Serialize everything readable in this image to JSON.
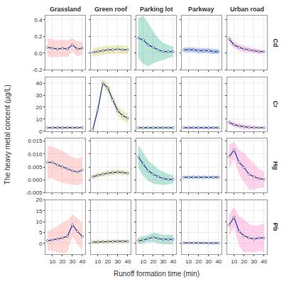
{
  "chart_data": {
    "type": "line",
    "x_label": "Runoff formation time (min)",
    "y_label": "The heavy metal concent (μg/L)",
    "color": "#1133BB",
    "marker": "circle",
    "grid": true,
    "x": [
      5,
      10,
      15,
      20,
      25,
      30,
      35,
      40
    ],
    "xlim": [
      3,
      43
    ],
    "xticks": [
      10,
      20,
      30,
      40
    ],
    "columns": [
      {
        "name": "Grassland",
        "color": "#FF9999"
      },
      {
        "name": "Green roof",
        "color": "#CCCC55"
      },
      {
        "name": "Parking lot",
        "color": "#44BB99"
      },
      {
        "name": "Parkway",
        "color": "#5588EE"
      },
      {
        "name": "Urban road",
        "color": "#FF88CC"
      }
    ],
    "rows": [
      {
        "name": "Cd",
        "ylim": [
          -0.2,
          0.45
        ],
        "yticks": [
          -0.2,
          {
            "value": 0.0,
            "label": "0.0"
          },
          0.2,
          0.4
        ],
        "panels": [
          {
            "values": [
              0.07,
              0.06,
              0.05,
              0.06,
              0.05,
              0.1,
              0.05,
              0.06
            ],
            "upper": [
              0.18,
              0.17,
              0.15,
              0.16,
              0.15,
              0.18,
              0.14,
              0.14
            ],
            "lower": [
              -0.04,
              -0.05,
              -0.05,
              -0.04,
              -0.05,
              0.02,
              -0.04,
              -0.02
            ]
          },
          {
            "values": [
              0.01,
              0.02,
              0.03,
              0.04,
              0.04,
              0.05,
              0.04,
              0.04
            ],
            "upper": [
              0.06,
              0.07,
              0.08,
              0.09,
              0.09,
              0.1,
              0.09,
              0.09
            ],
            "lower": [
              -0.04,
              -0.03,
              -0.02,
              -0.01,
              -0.01,
              0.0,
              -0.01,
              -0.01
            ]
          },
          {
            "values": [
              0.18,
              0.16,
              0.1,
              0.07,
              0.04,
              0.02,
              0.02,
              0.02
            ],
            "upper": [
              0.42,
              0.45,
              0.36,
              0.26,
              0.18,
              0.12,
              0.1,
              0.08
            ],
            "lower": [
              -0.06,
              -0.13,
              -0.16,
              -0.12,
              -0.1,
              -0.08,
              -0.06,
              -0.04
            ]
          },
          {
            "values": [
              0.04,
              0.04,
              0.04,
              0.03,
              0.03,
              0.03,
              0.02,
              0.02
            ],
            "upper": [
              0.07,
              0.07,
              0.07,
              0.06,
              0.06,
              0.06,
              0.05,
              0.05
            ],
            "lower": [
              0.01,
              0.01,
              0.01,
              0.0,
              0.0,
              0.0,
              -0.01,
              -0.01
            ]
          },
          {
            "values": [
              0.17,
              0.1,
              0.07,
              0.05,
              0.04,
              0.03,
              0.02,
              0.02
            ],
            "upper": [
              0.21,
              0.14,
              0.11,
              0.09,
              0.07,
              0.06,
              0.05,
              0.04
            ],
            "lower": [
              0.13,
              0.06,
              0.03,
              0.01,
              0.01,
              0.0,
              -0.01,
              0.0
            ]
          }
        ]
      },
      {
        "name": "Cr",
        "ylim": [
          0,
          45
        ],
        "yticks": [
          0,
          10,
          20,
          30,
          40
        ],
        "panels": [
          {
            "values": [
              3.0,
              3.1,
              3.0,
              3.0,
              3.0,
              3.1,
              3.0,
              3.1
            ],
            "upper": [
              4.0,
              4.0,
              4.0,
              4.0,
              4.0,
              4.0,
              4.0,
              4.0
            ],
            "lower": [
              2.0,
              2.2,
              2.0,
              2.0,
              2.0,
              2.2,
              2.0,
              2.2
            ]
          },
          {
            "values": [
              1.5,
              18.0,
              40.0,
              36.0,
              26.0,
              17.0,
              13.0,
              11.0
            ],
            "upper": [
              2.5,
              21.0,
              43.0,
              40.0,
              30.0,
              21.0,
              17.0,
              15.0
            ],
            "lower": [
              0.5,
              15.0,
              37.0,
              32.0,
              22.0,
              13.0,
              9.0,
              7.0
            ]
          },
          {
            "values": [
              3.0,
              3.0,
              3.0,
              3.0,
              3.0,
              3.0,
              3.0,
              3.0
            ],
            "upper": [
              4.0,
              4.0,
              4.0,
              4.0,
              4.0,
              4.0,
              4.0,
              4.0
            ],
            "lower": [
              2.0,
              2.0,
              2.0,
              2.0,
              2.0,
              2.0,
              2.0,
              2.0
            ]
          },
          {
            "values": [
              3.0,
              3.0,
              3.0,
              3.0,
              3.0,
              3.0,
              3.0,
              3.0
            ],
            "upper": [
              4.0,
              4.0,
              4.0,
              4.0,
              4.0,
              4.0,
              4.0,
              4.0
            ],
            "lower": [
              2.0,
              2.0,
              2.0,
              2.0,
              2.0,
              2.0,
              2.0,
              2.0
            ]
          },
          {
            "values": [
              7.5,
              5.5,
              4.5,
              3.8,
              3.3,
              3.1,
              3.0,
              3.0
            ],
            "upper": [
              9.5,
              7.5,
              6.5,
              5.8,
              5.0,
              4.5,
              4.0,
              4.0
            ],
            "lower": [
              5.5,
              3.5,
              2.5,
              1.8,
              1.6,
              1.7,
              2.0,
              2.0
            ]
          }
        ]
      },
      {
        "name": "Hg",
        "ylim": [
          -0.005,
          0.016
        ],
        "yticks": [
          -0.005,
          {
            "value": 0.0,
            "label": "0.000"
          },
          0.005,
          {
            "value": 0.01,
            "label": "0.010"
          },
          0.015
        ],
        "panels": [
          {
            "values": [
              0.0068,
              0.0068,
              0.0058,
              0.005,
              0.0042,
              0.0035,
              0.003,
              0.0038
            ],
            "upper": [
              0.013,
              0.013,
              0.012,
              0.0112,
              0.01,
              0.0088,
              0.0082,
              0.009
            ],
            "lower": [
              0.0006,
              0.0006,
              -0.0004,
              -0.0012,
              -0.0016,
              -0.0018,
              -0.0022,
              -0.0014
            ]
          },
          {
            "values": [
              0.0012,
              0.0018,
              0.0022,
              0.0026,
              0.0028,
              0.003,
              0.0028,
              0.0026
            ],
            "upper": [
              0.0022,
              0.0028,
              0.0032,
              0.0036,
              0.0038,
              0.004,
              0.0038,
              0.0036
            ],
            "lower": [
              0.0002,
              0.0008,
              0.0012,
              0.0016,
              0.0018,
              0.002,
              0.0018,
              0.0016
            ]
          },
          {
            "values": [
              0.009,
              0.006,
              0.0035,
              0.0022,
              0.0012,
              0.0005,
              0.0002,
              0.0002
            ],
            "upper": [
              0.0135,
              0.0105,
              0.0075,
              0.0058,
              0.0042,
              0.003,
              0.0022,
              0.0018
            ],
            "lower": [
              0.0045,
              0.0015,
              -0.0005,
              -0.0014,
              -0.0018,
              -0.002,
              -0.0018,
              -0.0014
            ]
          },
          {
            "values": [
              0.001,
              0.001,
              0.0011,
              0.001,
              0.001,
              0.001,
              0.001,
              0.001
            ],
            "upper": [
              0.0016,
              0.0016,
              0.0017,
              0.0016,
              0.0016,
              0.0016,
              0.0016,
              0.0016
            ],
            "lower": [
              0.0004,
              0.0004,
              0.0005,
              0.0004,
              0.0004,
              0.0004,
              0.0004,
              0.0004
            ]
          },
          {
            "values": [
              0.009,
              0.0115,
              0.0068,
              0.0048,
              0.0022,
              0.0012,
              0.0005,
              0.0002
            ],
            "upper": [
              0.0135,
              0.0148,
              0.0115,
              0.0105,
              0.0082,
              0.0062,
              0.0042,
              0.0032
            ],
            "lower": [
              0.0045,
              0.0082,
              0.0021,
              -0.0009,
              -0.0038,
              -0.0038,
              -0.0032,
              -0.0028
            ]
          }
        ]
      },
      {
        "name": "Pb",
        "ylim": [
          -5,
          20
        ],
        "yticks": [
          0,
          5,
          10,
          15,
          20
        ],
        "panels": [
          {
            "values": [
              1.2,
              1.5,
              2.0,
              2.5,
              3.2,
              8.5,
              5.5,
              3.2
            ],
            "upper": [
              5.5,
              6.5,
              8.0,
              9.5,
              10.5,
              13.5,
              11.5,
              9.5
            ],
            "lower": [
              -3.1,
              -3.5,
              -4.0,
              -4.5,
              -4.1,
              3.5,
              -0.5,
              -3.1
            ]
          },
          {
            "values": [
              0.5,
              0.6,
              0.8,
              0.9,
              0.9,
              0.9,
              0.9,
              0.9
            ],
            "upper": [
              1.5,
              1.6,
              1.8,
              1.9,
              1.9,
              1.9,
              1.9,
              1.9
            ],
            "lower": [
              -0.5,
              -0.4,
              -0.2,
              -0.1,
              -0.1,
              -0.1,
              -0.1,
              -0.1
            ]
          },
          {
            "values": [
              1.2,
              1.5,
              2.2,
              2.8,
              2.2,
              1.8,
              1.8,
              1.8
            ],
            "upper": [
              2.8,
              3.2,
              3.8,
              5.0,
              4.5,
              4.0,
              4.0,
              4.0
            ],
            "lower": [
              -0.4,
              -0.2,
              0.6,
              0.6,
              -0.1,
              -0.4,
              -0.4,
              -0.4
            ]
          },
          {
            "values": [
              0.2,
              0.2,
              0.2,
              0.2,
              0.2,
              0.1,
              0.1,
              0.1
            ],
            "upper": [
              0.6,
              0.6,
              0.6,
              0.6,
              0.5,
              0.5,
              0.5,
              0.5
            ],
            "lower": [
              -0.2,
              -0.2,
              -0.2,
              -0.2,
              -0.1,
              -0.3,
              -0.3,
              -0.3
            ]
          },
          {
            "values": [
              8.5,
              12.0,
              5.5,
              3.5,
              2.5,
              2.0,
              2.5,
              2.5
            ],
            "upper": [
              13.5,
              16.5,
              12.5,
              11.0,
              9.0,
              8.0,
              8.5,
              9.0
            ],
            "lower": [
              3.5,
              7.5,
              -1.5,
              -4.0,
              -4.0,
              -4.0,
              -3.5,
              -4.0
            ]
          }
        ]
      }
    ]
  }
}
